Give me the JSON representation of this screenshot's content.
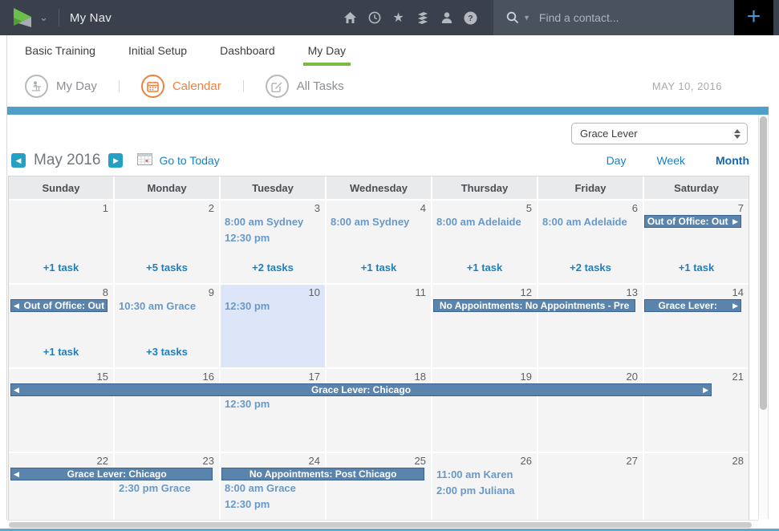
{
  "colors": {
    "nav_bg": "#3a414c",
    "search_bg": "#4a525e",
    "accent_green": "#76bc43",
    "accent_orange": "#f0803e",
    "accent_teal": "#4f9fc8",
    "link_blue": "#1e7fc0",
    "event_text": "#6899c7",
    "banner_bg": "#5b84ad",
    "banner_border": "#3a6293",
    "today_bg": "#dce6f8",
    "plus_blue": "#4b93cc"
  },
  "top_nav": {
    "app_title": "My Nav",
    "icons": [
      "home-icon",
      "clock-icon",
      "star-icon",
      "reports-icon",
      "contacts-icon",
      "help-icon"
    ],
    "search_placeholder": "Find a contact...",
    "add_label": "+"
  },
  "tabs": [
    {
      "label": "Basic Training",
      "active": false
    },
    {
      "label": "Initial Setup",
      "active": false
    },
    {
      "label": "Dashboard",
      "active": false
    },
    {
      "label": "My Day",
      "active": true
    }
  ],
  "subnav": {
    "my_day": "My Day",
    "calendar": "Calendar",
    "all_tasks": "All Tasks",
    "date": "MAY 10, 2016"
  },
  "toolbar": {
    "owner": "Grace Lever",
    "month": "May 2016",
    "today_link": "Go to Today",
    "views": [
      "Day",
      "Week",
      "Month"
    ],
    "active_view": "Month"
  },
  "calendar": {
    "day_headers": [
      "Sunday",
      "Monday",
      "Tuesday",
      "Wednesday",
      "Thursday",
      "Friday",
      "Saturday"
    ],
    "weeks": [
      {
        "days": [
          {
            "num": 1,
            "events": [],
            "tasks": "+1 task"
          },
          {
            "num": 2,
            "events": [],
            "tasks": "+5 tasks"
          },
          {
            "num": 3,
            "events": [
              "8:00 am Sydney",
              "12:30 pm"
            ],
            "tasks": "+2 tasks"
          },
          {
            "num": 4,
            "events": [
              "8:00 am Sydney"
            ],
            "tasks": "+1 task"
          },
          {
            "num": 5,
            "events": [
              "8:00 am Adelaide"
            ],
            "tasks": "+1 task"
          },
          {
            "num": 6,
            "events": [
              "8:00 am Adelaide"
            ],
            "tasks": "+2 tasks"
          },
          {
            "num": 7,
            "events": [],
            "tasks": "+1 task"
          }
        ],
        "banners": [
          {
            "col": 6,
            "span": 1,
            "label": "Out of Office: Out",
            "arrow_left": false,
            "arrow_right": true
          }
        ]
      },
      {
        "days": [
          {
            "num": 8,
            "events": [],
            "tasks": "+1 task"
          },
          {
            "num": 9,
            "events": [
              "10:30 am Grace"
            ],
            "tasks": "+3 tasks"
          },
          {
            "num": 10,
            "events": [
              "12:30 pm"
            ],
            "today": true
          },
          {
            "num": 11,
            "events": []
          },
          {
            "num": 12,
            "events": []
          },
          {
            "num": 13,
            "events": []
          },
          {
            "num": 14,
            "events": []
          }
        ],
        "banners": [
          {
            "col": 0,
            "span": 1,
            "label": "Out of Office: Out",
            "arrow_left": true,
            "arrow_right": false
          },
          {
            "col": 4,
            "span": 2,
            "label": "No Appointments: No Appointments - Pre",
            "arrow_left": false,
            "arrow_right": false
          },
          {
            "col": 6,
            "span": 1,
            "label": "Grace Lever:",
            "arrow_left": false,
            "arrow_right": true
          }
        ]
      },
      {
        "days": [
          {
            "num": 15,
            "events": []
          },
          {
            "num": 16,
            "events": []
          },
          {
            "num": 17,
            "events": [
              "12:30 pm"
            ]
          },
          {
            "num": 18,
            "events": []
          },
          {
            "num": 19,
            "events": []
          },
          {
            "num": 20,
            "events": []
          },
          {
            "num": 21,
            "events": []
          }
        ],
        "banners": [
          {
            "col": 0,
            "span": 7,
            "label": "Grace Lever: Chicago",
            "arrow_left": true,
            "arrow_right": true
          }
        ]
      },
      {
        "days": [
          {
            "num": 22,
            "events": []
          },
          {
            "num": 23,
            "events": [
              "2:30 pm Grace"
            ]
          },
          {
            "num": 24,
            "events": [
              "8:00 am Grace",
              "12:30 pm"
            ]
          },
          {
            "num": 25,
            "events": []
          },
          {
            "num": 26,
            "events": [
              "11:00 am Karen",
              "2:00 pm Juliana"
            ]
          },
          {
            "num": 27,
            "events": []
          },
          {
            "num": 28,
            "events": []
          }
        ],
        "banners": [
          {
            "col": 0,
            "span": 2,
            "label": "Grace Lever: Chicago",
            "arrow_left": true,
            "arrow_right": false
          },
          {
            "col": 2,
            "span": 2,
            "label": "No Appointments: Post Chicago",
            "arrow_left": false,
            "arrow_right": false
          }
        ]
      }
    ]
  }
}
